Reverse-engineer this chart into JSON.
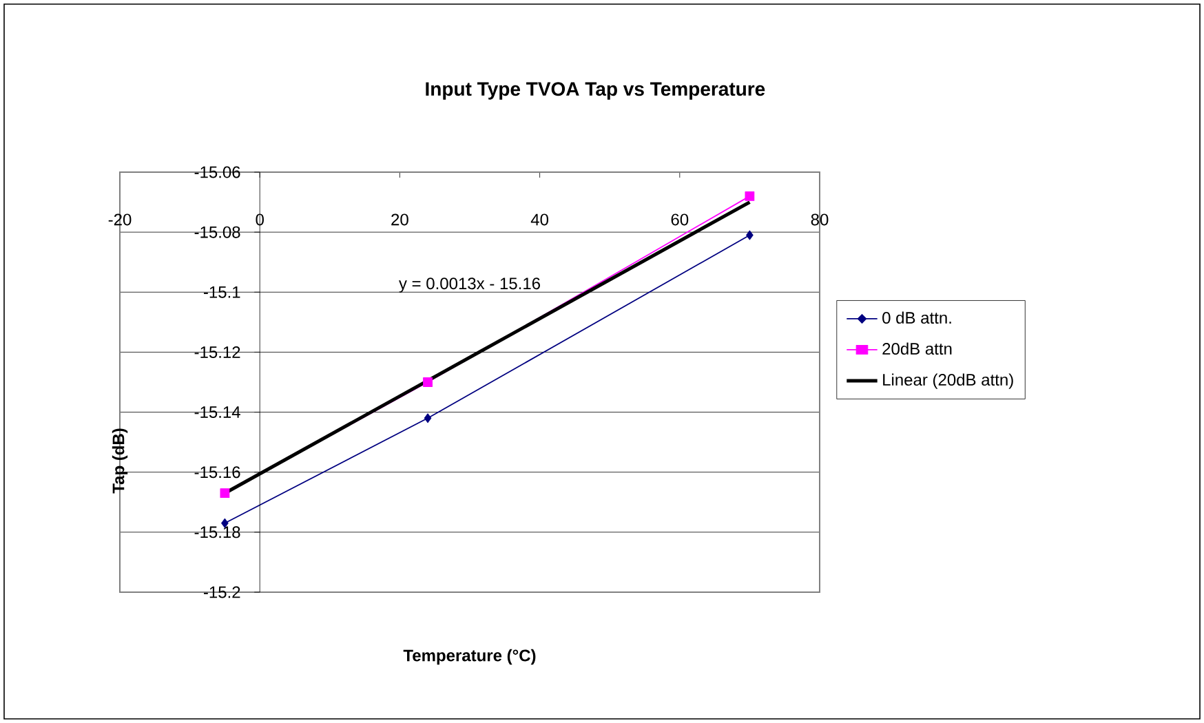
{
  "chart_data": {
    "type": "line",
    "title": "Input Type TVOA Tap vs Temperature",
    "xlabel": "Temperature (°C)",
    "ylabel": "Tap (dB)",
    "xlim": [
      -20,
      80
    ],
    "xticks": [
      -20,
      0,
      20,
      40,
      60,
      80
    ],
    "ylim": [
      -15.2,
      -15.06
    ],
    "yticks": [
      -15.2,
      -15.18,
      -15.16,
      -15.14,
      -15.12,
      -15.1,
      -15.08,
      -15.06
    ],
    "grid": "y",
    "legend": "right",
    "annotations": [
      "y = 0.0013x - 15.16"
    ],
    "series": [
      {
        "name": "0 dB attn.",
        "color": "#000080",
        "marker": "diamond",
        "x": [
          -5,
          24,
          70
        ],
        "values": [
          -15.177,
          -15.142,
          -15.081
        ]
      },
      {
        "name": "20dB attn",
        "color": "#ff00ff",
        "marker": "square",
        "x": [
          -5,
          24,
          70
        ],
        "values": [
          -15.167,
          -15.13,
          -15.068
        ]
      },
      {
        "name": "Linear (20dB attn)",
        "color": "#000000",
        "marker": "none",
        "x": [
          -5,
          70
        ],
        "values": [
          -15.167,
          -15.07
        ]
      }
    ]
  }
}
